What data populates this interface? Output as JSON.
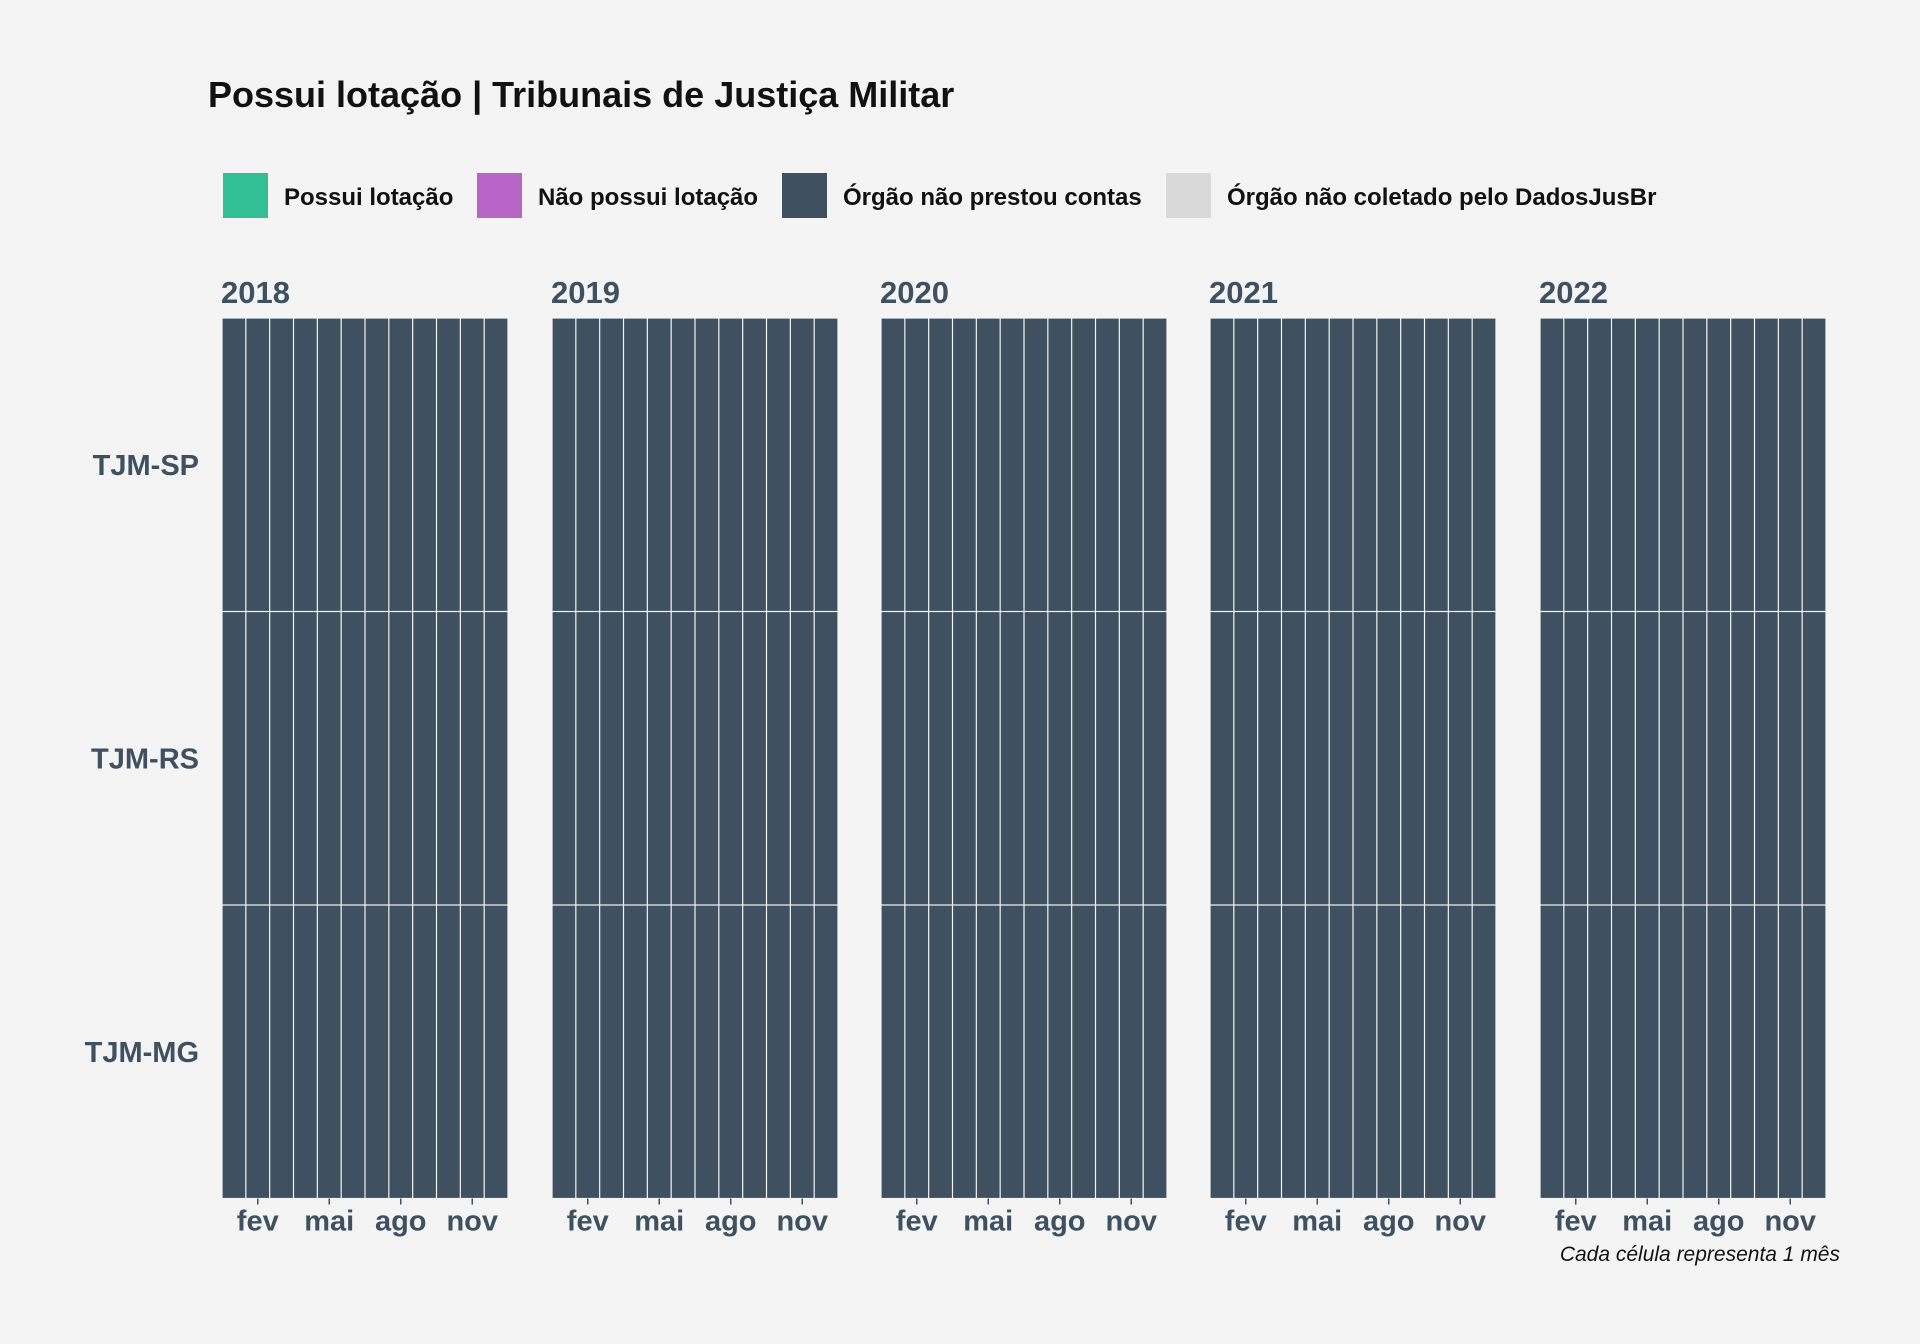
{
  "chart_data": {
    "type": "heatmap",
    "title": "Possui lotação | Tribunais de Justiça Militar",
    "caption": "Cada célula representa 1 mês",
    "legend": [
      {
        "label": "Possui lotação",
        "color": "#33bf96"
      },
      {
        "label": "Não possui lotação",
        "color": "#b965c8"
      },
      {
        "label": "Órgão não prestou contas",
        "color": "#3f5060"
      },
      {
        "label": "Órgão não coletado pelo DadosJusBr",
        "color": "#d9d9d9"
      }
    ],
    "legend_position": "top",
    "years": [
      "2018",
      "2019",
      "2020",
      "2021",
      "2022"
    ],
    "rows": [
      "TJM-SP",
      "TJM-RS",
      "TJM-MG"
    ],
    "months_per_year": 12,
    "x_ticks": [
      {
        "month": 2,
        "label": "fev"
      },
      {
        "month": 5,
        "label": "mai"
      },
      {
        "month": 8,
        "label": "ago"
      },
      {
        "month": 11,
        "label": "nov"
      }
    ],
    "cells": {
      "2018": {
        "TJM-SP": [
          "Órgão não prestou contas",
          "Órgão não prestou contas",
          "Órgão não prestou contas",
          "Órgão não prestou contas",
          "Órgão não prestou contas",
          "Órgão não prestou contas",
          "Órgão não prestou contas",
          "Órgão não prestou contas",
          "Órgão não prestou contas",
          "Órgão não prestou contas",
          "Órgão não prestou contas",
          "Órgão não prestou contas"
        ],
        "TJM-RS": [
          "Órgão não prestou contas",
          "Órgão não prestou contas",
          "Órgão não prestou contas",
          "Órgão não prestou contas",
          "Órgão não prestou contas",
          "Órgão não prestou contas",
          "Órgão não prestou contas",
          "Órgão não prestou contas",
          "Órgão não prestou contas",
          "Órgão não prestou contas",
          "Órgão não prestou contas",
          "Órgão não prestou contas"
        ],
        "TJM-MG": [
          "Órgão não prestou contas",
          "Órgão não prestou contas",
          "Órgão não prestou contas",
          "Órgão não prestou contas",
          "Órgão não prestou contas",
          "Órgão não prestou contas",
          "Órgão não prestou contas",
          "Órgão não prestou contas",
          "Órgão não prestou contas",
          "Órgão não prestou contas",
          "Órgão não prestou contas",
          "Órgão não prestou contas"
        ]
      },
      "2019": {
        "TJM-SP": [
          "Órgão não prestou contas",
          "Órgão não prestou contas",
          "Órgão não prestou contas",
          "Órgão não prestou contas",
          "Órgão não prestou contas",
          "Órgão não prestou contas",
          "Órgão não prestou contas",
          "Órgão não prestou contas",
          "Órgão não prestou contas",
          "Órgão não prestou contas",
          "Órgão não prestou contas",
          "Órgão não prestou contas"
        ],
        "TJM-RS": [
          "Órgão não prestou contas",
          "Órgão não prestou contas",
          "Órgão não prestou contas",
          "Órgão não prestou contas",
          "Órgão não prestou contas",
          "Órgão não prestou contas",
          "Órgão não prestou contas",
          "Órgão não prestou contas",
          "Órgão não prestou contas",
          "Órgão não prestou contas",
          "Órgão não prestou contas",
          "Órgão não prestou contas"
        ],
        "TJM-MG": [
          "Órgão não prestou contas",
          "Órgão não prestou contas",
          "Órgão não prestou contas",
          "Órgão não prestou contas",
          "Órgão não prestou contas",
          "Órgão não prestou contas",
          "Órgão não prestou contas",
          "Órgão não prestou contas",
          "Órgão não prestou contas",
          "Órgão não prestou contas",
          "Órgão não prestou contas",
          "Órgão não prestou contas"
        ]
      },
      "2020": {
        "TJM-SP": [
          "Órgão não prestou contas",
          "Órgão não prestou contas",
          "Órgão não prestou contas",
          "Órgão não prestou contas",
          "Órgão não prestou contas",
          "Órgão não prestou contas",
          "Órgão não prestou contas",
          "Órgão não prestou contas",
          "Órgão não prestou contas",
          "Órgão não prestou contas",
          "Órgão não prestou contas",
          "Órgão não prestou contas"
        ],
        "TJM-RS": [
          "Órgão não prestou contas",
          "Órgão não prestou contas",
          "Órgão não prestou contas",
          "Órgão não prestou contas",
          "Órgão não prestou contas",
          "Órgão não prestou contas",
          "Órgão não prestou contas",
          "Órgão não prestou contas",
          "Órgão não prestou contas",
          "Órgão não prestou contas",
          "Órgão não prestou contas",
          "Órgão não prestou contas"
        ],
        "TJM-MG": [
          "Órgão não prestou contas",
          "Órgão não prestou contas",
          "Órgão não prestou contas",
          "Órgão não prestou contas",
          "Órgão não prestou contas",
          "Órgão não prestou contas",
          "Órgão não prestou contas",
          "Órgão não prestou contas",
          "Órgão não prestou contas",
          "Órgão não prestou contas",
          "Órgão não prestou contas",
          "Órgão não prestou contas"
        ]
      },
      "2021": {
        "TJM-SP": [
          "Órgão não prestou contas",
          "Órgão não prestou contas",
          "Órgão não prestou contas",
          "Órgão não prestou contas",
          "Órgão não prestou contas",
          "Órgão não prestou contas",
          "Órgão não prestou contas",
          "Órgão não prestou contas",
          "Órgão não prestou contas",
          "Órgão não prestou contas",
          "Órgão não prestou contas",
          "Órgão não prestou contas"
        ],
        "TJM-RS": [
          "Órgão não prestou contas",
          "Órgão não prestou contas",
          "Órgão não prestou contas",
          "Órgão não prestou contas",
          "Órgão não prestou contas",
          "Órgão não prestou contas",
          "Órgão não prestou contas",
          "Órgão não prestou contas",
          "Órgão não prestou contas",
          "Órgão não prestou contas",
          "Órgão não prestou contas",
          "Órgão não prestou contas"
        ],
        "TJM-MG": [
          "Órgão não prestou contas",
          "Órgão não prestou contas",
          "Órgão não prestou contas",
          "Órgão não prestou contas",
          "Órgão não prestou contas",
          "Órgão não prestou contas",
          "Órgão não prestou contas",
          "Órgão não prestou contas",
          "Órgão não prestou contas",
          "Órgão não prestou contas",
          "Órgão não prestou contas",
          "Órgão não prestou contas"
        ]
      },
      "2022": {
        "TJM-SP": [
          "Órgão não prestou contas",
          "Órgão não prestou contas",
          "Órgão não prestou contas",
          "Órgão não prestou contas",
          "Órgão não prestou contas",
          "Órgão não prestou contas",
          "Órgão não prestou contas",
          "Órgão não prestou contas",
          "Órgão não prestou contas",
          "Órgão não prestou contas",
          "Órgão não prestou contas",
          "Órgão não prestou contas"
        ],
        "TJM-RS": [
          "Órgão não prestou contas",
          "Órgão não prestou contas",
          "Órgão não prestou contas",
          "Órgão não prestou contas",
          "Órgão não prestou contas",
          "Órgão não prestou contas",
          "Órgão não prestou contas",
          "Órgão não prestou contas",
          "Órgão não prestou contas",
          "Órgão não prestou contas",
          "Órgão não prestou contas",
          "Órgão não prestou contas"
        ],
        "TJM-MG": [
          "Órgão não prestou contas",
          "Órgão não prestou contas",
          "Órgão não prestou contas",
          "Órgão não prestou contas",
          "Órgão não prestou contas",
          "Órgão não prestou contas",
          "Órgão não prestou contas",
          "Órgão não prestou contas",
          "Órgão não prestou contas",
          "Órgão não prestou contas",
          "Órgão não prestou contas",
          "Órgão não prestou contas"
        ]
      }
    }
  }
}
